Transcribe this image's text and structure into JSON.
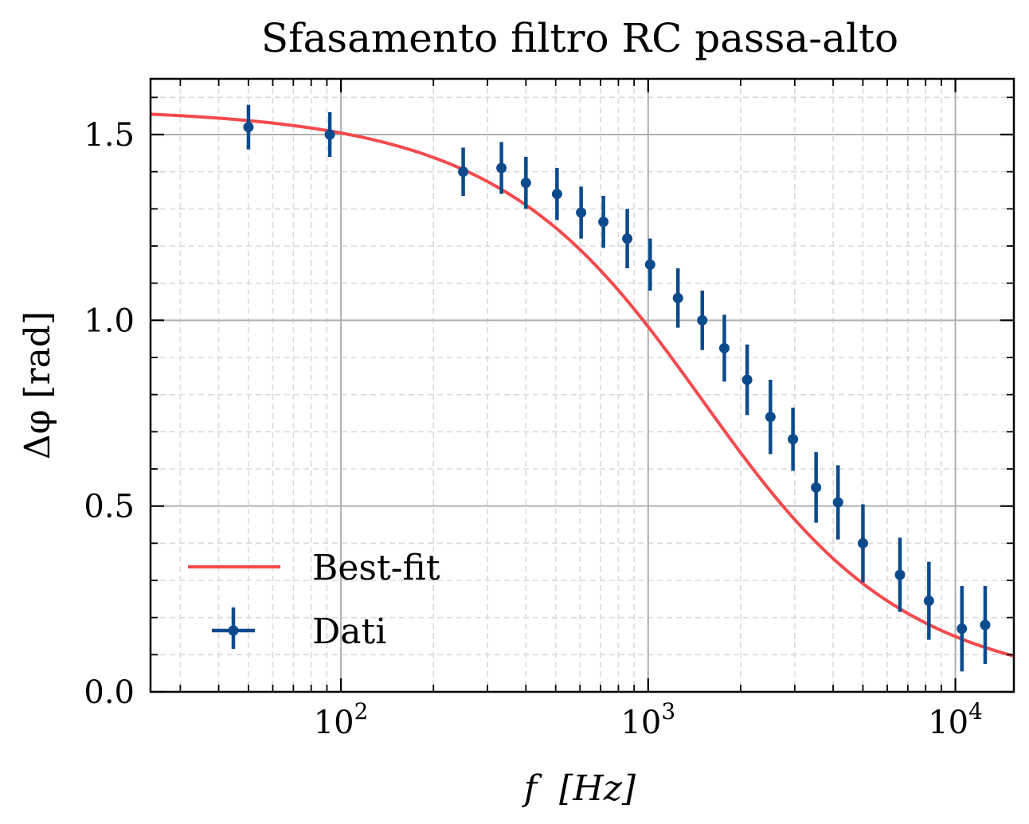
{
  "chart_data": {
    "type": "scatter",
    "title": "Sfasamento filtro RC passa-alto",
    "xlabel": "f  [Hz]",
    "ylabel": "Δφ [rad]",
    "xscale": "log",
    "xlim": [
      24,
      15500
    ],
    "ylim": [
      0.0,
      1.65
    ],
    "x_ticks": [
      {
        "value": 100,
        "label": "10",
        "exp": "2"
      },
      {
        "value": 1000,
        "label": "10",
        "exp": "3"
      },
      {
        "value": 10000,
        "label": "10",
        "exp": "4"
      }
    ],
    "y_ticks": [
      {
        "value": 0.0,
        "label": "0.0"
      },
      {
        "value": 0.5,
        "label": "0.5"
      },
      {
        "value": 1.0,
        "label": "1.0"
      },
      {
        "value": 1.5,
        "label": "1.5"
      }
    ],
    "grid": true,
    "legend_position": "lower-left",
    "colors": {
      "fit": "#f44a4d",
      "data": "#0b4a8c"
    },
    "fit": {
      "name": "Best-fit",
      "cutoff_hz": 1500
    },
    "data": {
      "name": "Dati",
      "points": [
        {
          "x": 50,
          "y": 1.52,
          "err": 0.06
        },
        {
          "x": 92,
          "y": 1.5,
          "err": 0.06
        },
        {
          "x": 250,
          "y": 1.4,
          "err": 0.065
        },
        {
          "x": 333,
          "y": 1.41,
          "err": 0.07
        },
        {
          "x": 400,
          "y": 1.37,
          "err": 0.07
        },
        {
          "x": 505,
          "y": 1.34,
          "err": 0.07
        },
        {
          "x": 605,
          "y": 1.29,
          "err": 0.07
        },
        {
          "x": 715,
          "y": 1.265,
          "err": 0.07
        },
        {
          "x": 855,
          "y": 1.22,
          "err": 0.08
        },
        {
          "x": 1015,
          "y": 1.15,
          "err": 0.07
        },
        {
          "x": 1250,
          "y": 1.06,
          "err": 0.08
        },
        {
          "x": 1500,
          "y": 1.0,
          "err": 0.08
        },
        {
          "x": 1770,
          "y": 0.925,
          "err": 0.09
        },
        {
          "x": 2100,
          "y": 0.84,
          "err": 0.095
        },
        {
          "x": 2500,
          "y": 0.74,
          "err": 0.1
        },
        {
          "x": 2960,
          "y": 0.68,
          "err": 0.085
        },
        {
          "x": 3520,
          "y": 0.55,
          "err": 0.095
        },
        {
          "x": 4150,
          "y": 0.51,
          "err": 0.1
        },
        {
          "x": 5000,
          "y": 0.4,
          "err": 0.105
        },
        {
          "x": 6600,
          "y": 0.315,
          "err": 0.1
        },
        {
          "x": 8200,
          "y": 0.245,
          "err": 0.105
        },
        {
          "x": 10500,
          "y": 0.17,
          "err": 0.115
        },
        {
          "x": 12500,
          "y": 0.18,
          "err": 0.105
        }
      ]
    }
  }
}
